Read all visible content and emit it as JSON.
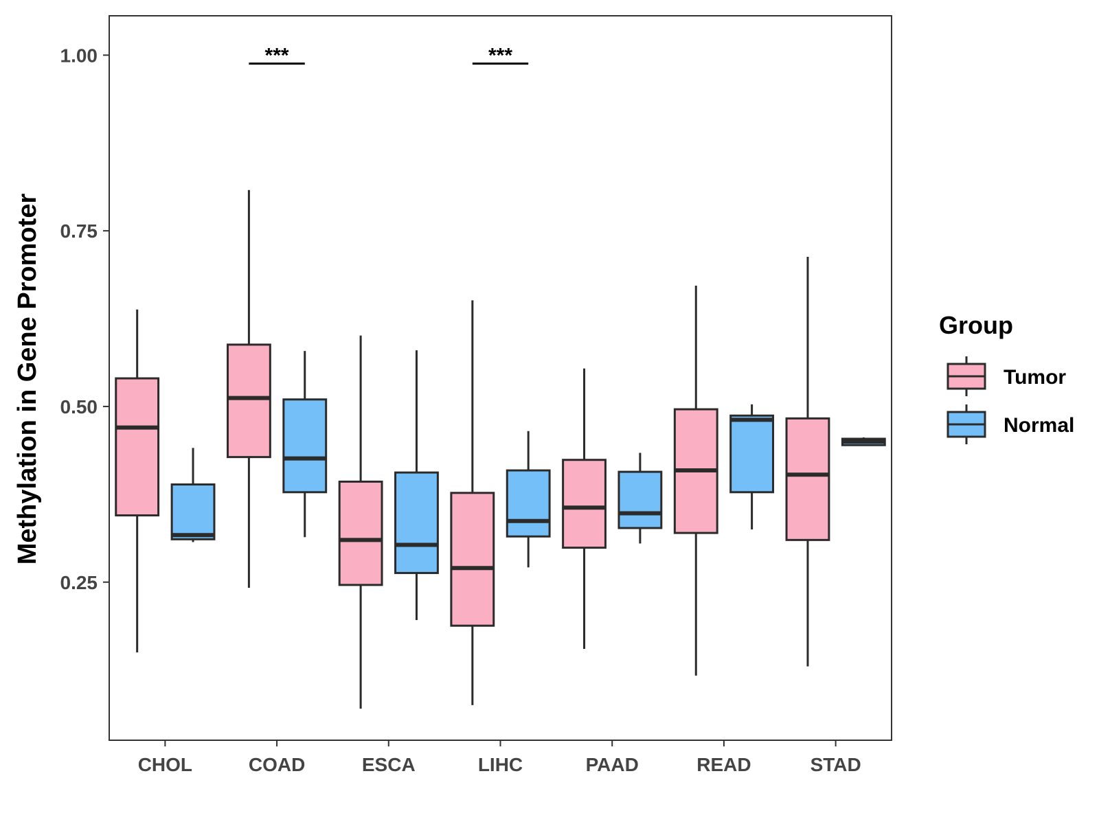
{
  "chart_data": {
    "type": "boxplot",
    "title": "",
    "xlabel": "",
    "ylabel": "Methylation in Gene Promoter",
    "ylim": [
      0.025,
      1.056
    ],
    "yticks": [
      0.25,
      0.5,
      0.75,
      1.0
    ],
    "ytick_labels": [
      "0.25",
      "0.50",
      "0.75",
      "1.00"
    ],
    "grid": false,
    "categories": [
      "CHOL",
      "COAD",
      "ESCA",
      "LIHC",
      "PAAD",
      "READ",
      "STAD"
    ],
    "legend": {
      "title": "Group",
      "position": "right",
      "entries": [
        {
          "name": "Tumor",
          "color": "#FBAFC3"
        },
        {
          "name": "Normal",
          "color": "#74BFF8"
        }
      ]
    },
    "series": [
      {
        "name": "Tumor",
        "color": "#FBAFC3",
        "boxes": [
          {
            "category": "CHOL",
            "min": 0.15,
            "q1": 0.345,
            "median": 0.47,
            "q3": 0.54,
            "max": 0.638
          },
          {
            "category": "COAD",
            "min": 0.242,
            "q1": 0.428,
            "median": 0.512,
            "q3": 0.588,
            "max": 0.808
          },
          {
            "category": "ESCA",
            "min": 0.07,
            "q1": 0.246,
            "median": 0.31,
            "q3": 0.393,
            "max": 0.601
          },
          {
            "category": "LIHC",
            "min": 0.075,
            "q1": 0.188,
            "median": 0.27,
            "q3": 0.377,
            "max": 0.651
          },
          {
            "category": "PAAD",
            "min": 0.155,
            "q1": 0.299,
            "median": 0.356,
            "q3": 0.424,
            "max": 0.554
          },
          {
            "category": "READ",
            "min": 0.117,
            "q1": 0.32,
            "median": 0.409,
            "q3": 0.496,
            "max": 0.672
          },
          {
            "category": "STAD",
            "min": 0.13,
            "q1": 0.31,
            "median": 0.403,
            "q3": 0.483,
            "max": 0.713
          }
        ]
      },
      {
        "name": "Normal",
        "color": "#74BFF8",
        "boxes": [
          {
            "category": "CHOL",
            "min": 0.307,
            "q1": 0.311,
            "median": 0.317,
            "q3": 0.389,
            "max": 0.441
          },
          {
            "category": "COAD",
            "min": 0.314,
            "q1": 0.378,
            "median": 0.426,
            "q3": 0.51,
            "max": 0.579
          },
          {
            "category": "ESCA",
            "min": 0.196,
            "q1": 0.263,
            "median": 0.303,
            "q3": 0.406,
            "max": 0.58
          },
          {
            "category": "LIHC",
            "min": 0.271,
            "q1": 0.315,
            "median": 0.337,
            "q3": 0.409,
            "max": 0.465
          },
          {
            "category": "PAAD",
            "min": 0.305,
            "q1": 0.327,
            "median": 0.348,
            "q3": 0.407,
            "max": 0.434
          },
          {
            "category": "READ",
            "min": 0.325,
            "q1": 0.378,
            "median": 0.481,
            "q3": 0.487,
            "max": 0.503
          },
          {
            "category": "STAD",
            "min": 0.444,
            "q1": 0.445,
            "median": 0.45,
            "q3": 0.454,
            "max": 0.456
          }
        ]
      }
    ],
    "annotations": [
      {
        "category": "COAD",
        "text": "***",
        "y": 0.988
      },
      {
        "category": "LIHC",
        "text": "***",
        "y": 0.988
      }
    ]
  }
}
